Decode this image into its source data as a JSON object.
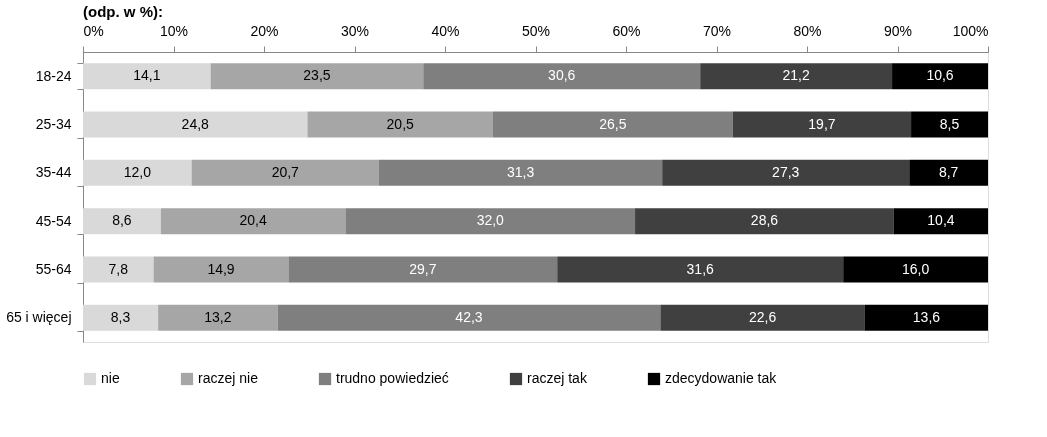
{
  "chart_data": {
    "type": "bar",
    "orientation": "horizontal",
    "stacked": true,
    "title": "(odp. w %):",
    "categories": [
      "18-24",
      "25-34",
      "35-44",
      "45-54",
      "55-64",
      "65 i więcej"
    ],
    "series": [
      {
        "name": "nie",
        "color": "#d9d9d9",
        "values": [
          14.1,
          24.8,
          12.0,
          8.6,
          7.8,
          8.3
        ],
        "value_labels": [
          "14,1",
          "24,8",
          "12,0",
          "8,6",
          "7,8",
          "8,3"
        ]
      },
      {
        "name": "raczej nie",
        "color": "#a6a6a6",
        "values": [
          23.5,
          20.5,
          20.7,
          20.4,
          14.9,
          13.2
        ],
        "value_labels": [
          "23,5",
          "20,5",
          "20,7",
          "20,4",
          "14,9",
          "13,2"
        ]
      },
      {
        "name": "trudno powiedzieć",
        "color": "#7f7f7f",
        "values": [
          30.6,
          26.5,
          31.3,
          32.0,
          29.7,
          42.3
        ],
        "value_labels": [
          "30,6",
          "26,5",
          "31,3",
          "32,0",
          "29,7",
          "42,3"
        ]
      },
      {
        "name": "raczej tak",
        "color": "#404040",
        "values": [
          21.2,
          19.7,
          27.3,
          28.6,
          31.6,
          22.6
        ],
        "value_labels": [
          "21,2",
          "19,7",
          "27,3",
          "28,6",
          "31,6",
          "22,6"
        ]
      },
      {
        "name": "zdecydowanie tak",
        "color": "#000000",
        "values": [
          10.6,
          8.5,
          8.7,
          10.4,
          16.0,
          13.6
        ],
        "value_labels": [
          "10,6",
          "8,5",
          "8,7",
          "10,4",
          "16,0",
          "13,6"
        ]
      }
    ],
    "xlim": [
      0,
      100
    ],
    "xticks": [
      {
        "value": 0,
        "label": "0%"
      },
      {
        "value": 10,
        "label": "10%"
      },
      {
        "value": 20,
        "label": "20%"
      },
      {
        "value": 30,
        "label": "30%"
      },
      {
        "value": 40,
        "label": "40%"
      },
      {
        "value": 50,
        "label": "50%"
      },
      {
        "value": 60,
        "label": "60%"
      },
      {
        "value": 70,
        "label": "70%"
      },
      {
        "value": 80,
        "label": "80%"
      },
      {
        "value": 90,
        "label": "90%"
      },
      {
        "value": 100,
        "label": "100%"
      }
    ],
    "grid": false,
    "legend": "bottom"
  }
}
